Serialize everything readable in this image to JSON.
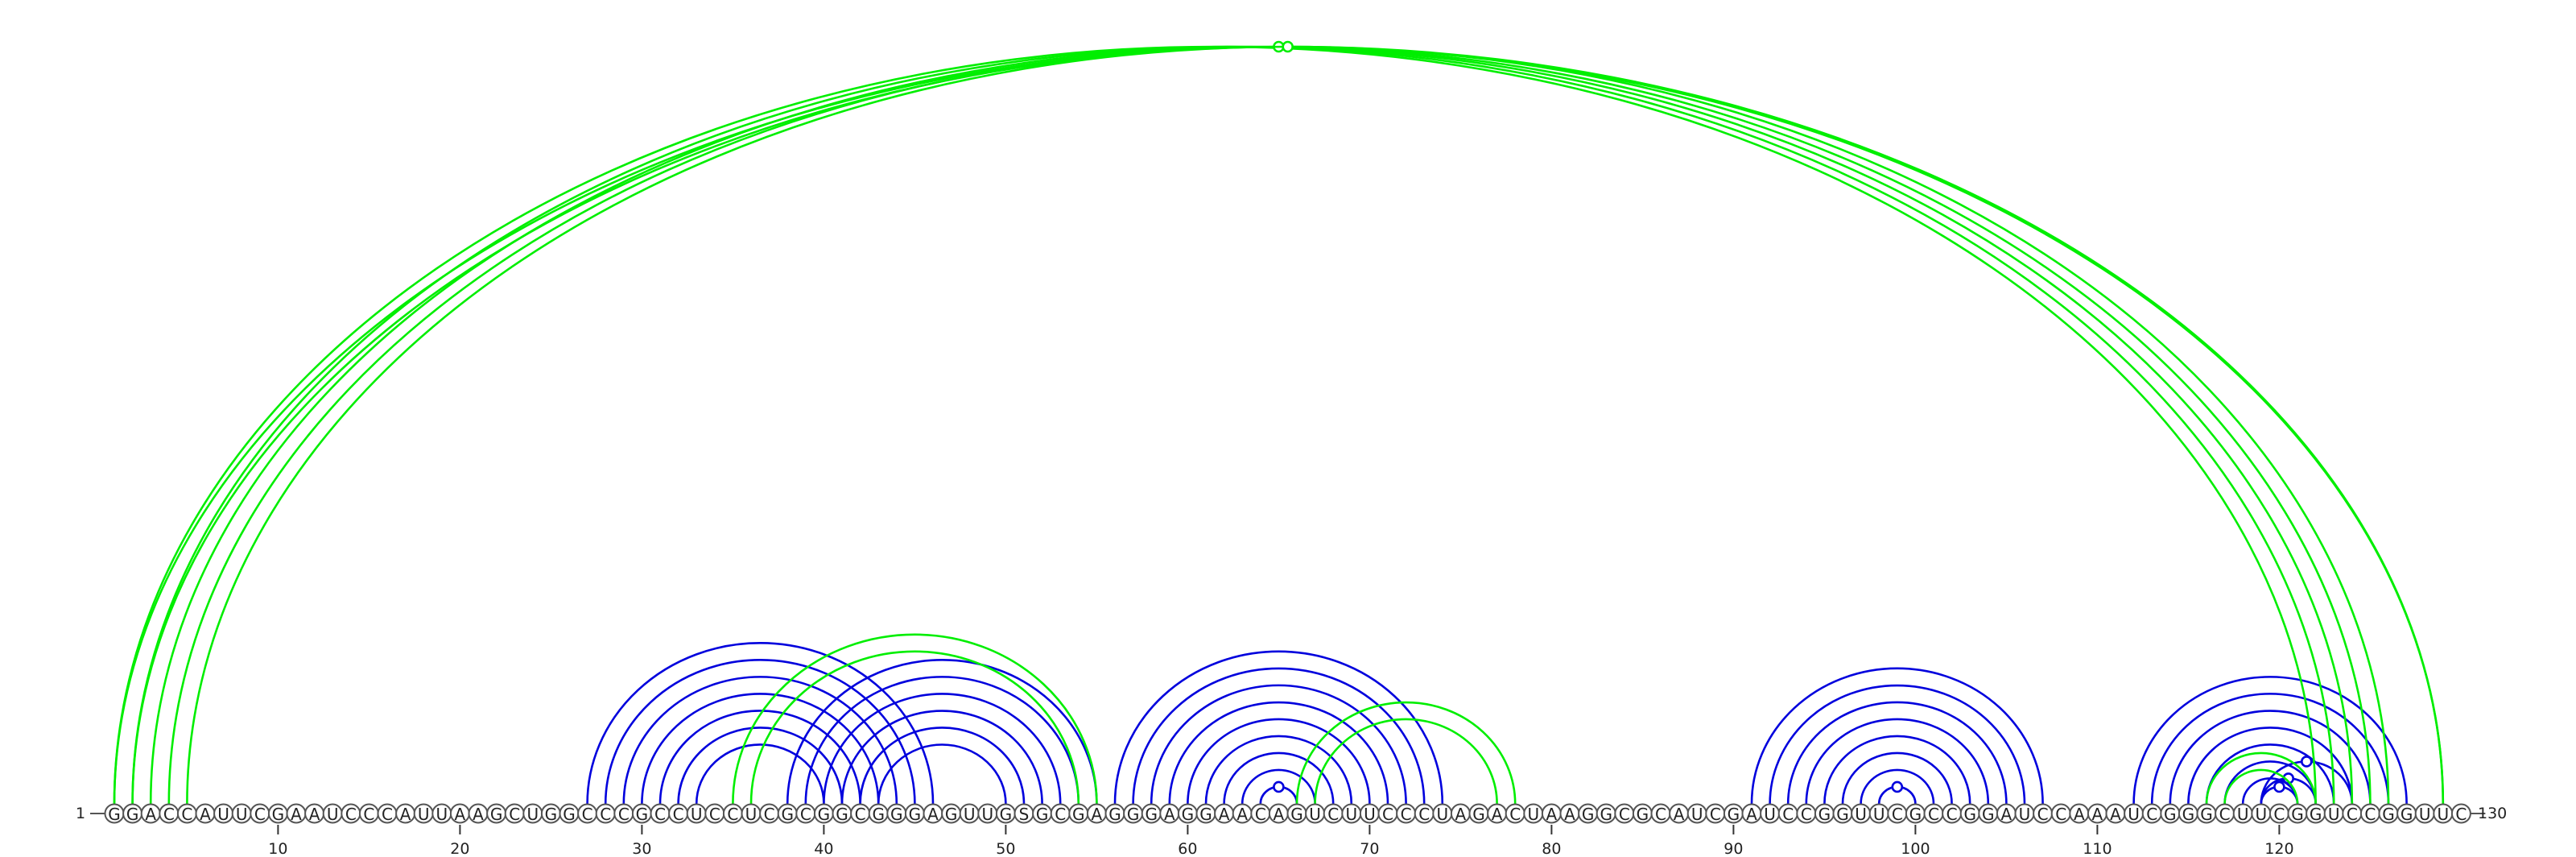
{
  "sequence": "GGACCAUUCGAAUCCCAUUAAGCUGGCCCGCCUCCUCGCGGCGGGAGUUGSGCGAGGGAGGAACAGUCUUCCCUAGACUAAGGCGCAUCGAUCCGGUUCGCCGGAUCCAAAUCGGGCUUCGGUCCGGUUC",
  "start_label": "1",
  "end_label": "130",
  "position_ticks": [
    10,
    20,
    30,
    40,
    50,
    60,
    70,
    80,
    90,
    100,
    110,
    120
  ],
  "colors": {
    "primary_pairs": "#0000dd",
    "secondary_pairs": "#00ee00"
  },
  "pair_sets": [
    {
      "color": "#0000dd",
      "pairs": [
        [
          27,
          46
        ],
        [
          28,
          45
        ],
        [
          29,
          44
        ],
        [
          30,
          43
        ],
        [
          31,
          42
        ],
        [
          32,
          41
        ],
        [
          33,
          40
        ],
        [
          38,
          55
        ],
        [
          39,
          54
        ],
        [
          40,
          53
        ],
        [
          41,
          52
        ],
        [
          42,
          51
        ],
        [
          43,
          50
        ],
        [
          56,
          74
        ],
        [
          57,
          73
        ],
        [
          58,
          72
        ],
        [
          59,
          71
        ],
        [
          60,
          70
        ],
        [
          61,
          69
        ],
        [
          62,
          68
        ],
        [
          63,
          67
        ],
        [
          91,
          107
        ],
        [
          92,
          106
        ],
        [
          93,
          105
        ],
        [
          94,
          104
        ],
        [
          95,
          103
        ],
        [
          96,
          102
        ],
        [
          97,
          101
        ],
        [
          112,
          127
        ],
        [
          113,
          126
        ],
        [
          114,
          125
        ],
        [
          115,
          124
        ],
        [
          116,
          123
        ],
        [
          117,
          122
        ],
        [
          118,
          121
        ]
      ],
      "noncanonical": [
        [
          64,
          66
        ],
        [
          98,
          100
        ],
        [
          119,
          121
        ],
        [
          119,
          122
        ],
        [
          119,
          124
        ]
      ]
    },
    {
      "color": "#00ee00",
      "pairs": [
        [
          1,
          122
        ],
        [
          2,
          123
        ],
        [
          3,
          124
        ],
        [
          4,
          125
        ],
        [
          5,
          126
        ],
        [
          35,
          55
        ],
        [
          36,
          54
        ],
        [
          66,
          78
        ],
        [
          67,
          77
        ],
        [
          116,
          122
        ],
        [
          117,
          121
        ]
      ],
      "noncanonical": [
        [
          1,
          129
        ],
        [
          2,
          129
        ]
      ]
    }
  ]
}
